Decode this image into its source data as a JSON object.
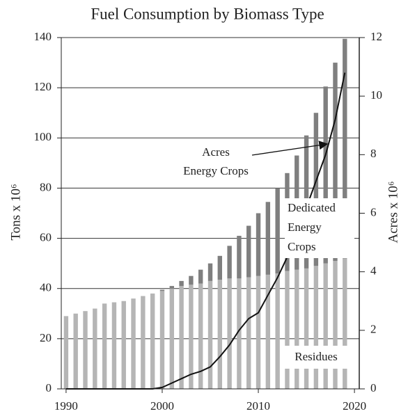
{
  "chart_data": {
    "type": "bar",
    "title": "Fuel Consumption by Biomass Type",
    "y_label": "Tons x 10⁶",
    "y2_label": "Acres x 10⁶",
    "x": [
      1990,
      1991,
      1992,
      1993,
      1994,
      1995,
      1996,
      1997,
      1998,
      1999,
      2000,
      2001,
      2002,
      2003,
      2004,
      2005,
      2006,
      2007,
      2008,
      2009,
      2010,
      2011,
      2012,
      2013,
      2014,
      2015,
      2016,
      2017,
      2018,
      2019
    ],
    "series": [
      {
        "name": "Residues",
        "color": "#b5b5b5",
        "type": "bar",
        "values": [
          29,
          30,
          31,
          32,
          34,
          34.5,
          35,
          36,
          37,
          38,
          39,
          40,
          41,
          41.5,
          42,
          43,
          43.5,
          44,
          44,
          44.5,
          45,
          45.5,
          46,
          47,
          47.5,
          48,
          49,
          50,
          51,
          52
        ]
      },
      {
        "name": "Dedicated Energy Crops",
        "color": "#7f7f7f",
        "type": "bar",
        "values": [
          0,
          0,
          0,
          0,
          0,
          0,
          0,
          0,
          0,
          0,
          0.5,
          1,
          2,
          3.5,
          5.5,
          7,
          9.5,
          13,
          17,
          20.5,
          25,
          29,
          34,
          39,
          45.5,
          53,
          61,
          70.5,
          79,
          87.5
        ]
      },
      {
        "name": "Acres Energy Crops",
        "color": "#111111",
        "type": "line",
        "axis": "y2",
        "values": [
          0,
          0,
          0,
          0,
          0,
          0,
          0,
          0,
          0,
          0,
          0.05,
          0.2,
          0.35,
          0.5,
          0.6,
          0.75,
          1.1,
          1.5,
          2,
          2.4,
          2.6,
          3.2,
          3.8,
          4.5,
          5.3,
          6.2,
          7.1,
          8,
          9.2,
          10.8
        ]
      }
    ],
    "xlim": [
      1989.5,
      2020.5
    ],
    "xticks": [
      1990,
      2000,
      2010,
      2020
    ],
    "ylim": [
      0,
      140
    ],
    "yticks": [
      0,
      20,
      40,
      60,
      80,
      100,
      120,
      140
    ],
    "y2lim": [
      0,
      12
    ],
    "y2ticks": [
      0,
      2,
      4,
      6,
      8,
      10,
      12
    ],
    "grid": true
  }
}
